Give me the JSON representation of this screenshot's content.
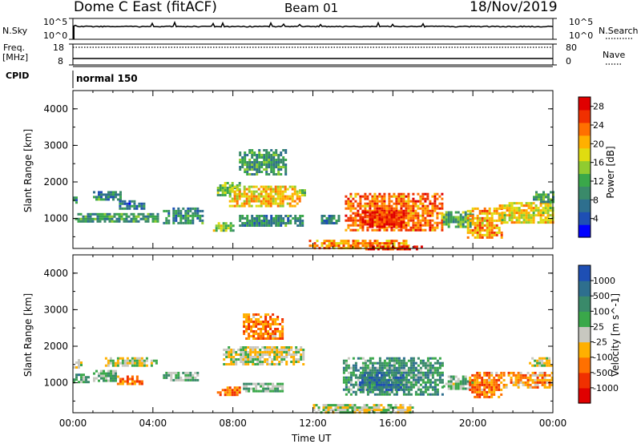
{
  "header": {
    "title": "Dome C East (fitACF)",
    "beam": "Beam 01",
    "date": "18/Nov/2019"
  },
  "strip": {
    "nsky_label": "N.Sky",
    "nsearch_label": "N.Search",
    "nsky_ticks": [
      "10^5",
      "10^0"
    ],
    "nsearch_ticks": [
      "10^5",
      "10^0"
    ],
    "freq_label_1": "Freq.",
    "freq_label_2": "[MHz]",
    "freq_ticks": [
      "18",
      "8"
    ],
    "nave_label": "Nave",
    "nave_ticks": [
      "80",
      "0"
    ],
    "cpid_label": "CPID",
    "cpid_value": "normal 150"
  },
  "chart_data": [
    {
      "type": "heatmap",
      "name": "power",
      "ylabel": "Slant Range [km]",
      "xlabel": "Time UT",
      "x_range_hours": [
        0,
        24
      ],
      "ylim": [
        180,
        4500
      ],
      "yticks": [
        "4000",
        "3000",
        "2000",
        "1000"
      ],
      "xticks": [
        "00:00",
        "04:00",
        "08:00",
        "12:00",
        "16:00",
        "20:00",
        "00:00"
      ],
      "colorbar": {
        "label": "Power [dB]",
        "ticks": [
          "28",
          "24",
          "20",
          "16",
          "12",
          "8",
          "4"
        ],
        "range": [
          0,
          30
        ],
        "colors": [
          "#0000ff",
          "#1e4fb4",
          "#2e6f8e",
          "#3a8a6a",
          "#3aa84a",
          "#90cc30",
          "#e0dc10",
          "#ffb000",
          "#ff7000",
          "#f03000",
          "#e00000"
        ]
      },
      "echo_regions": [
        {
          "t0": 0.0,
          "t1": 0.2,
          "r0": 1400,
          "r1": 1600,
          "level": 0.3
        },
        {
          "t0": 0.1,
          "t1": 4.3,
          "r0": 900,
          "r1": 1150,
          "level": 0.35
        },
        {
          "t0": 1.0,
          "t1": 2.4,
          "r0": 1500,
          "r1": 1750,
          "level": 0.3
        },
        {
          "t0": 2.3,
          "t1": 3.6,
          "r0": 1250,
          "r1": 1500,
          "level": 0.25
        },
        {
          "t0": 4.5,
          "t1": 6.5,
          "r0": 900,
          "r1": 1300,
          "level": 0.3
        },
        {
          "t0": 7.2,
          "t1": 8.3,
          "r0": 1650,
          "r1": 2000,
          "level": 0.45
        },
        {
          "t0": 7.8,
          "t1": 11.3,
          "r0": 1350,
          "r1": 1900,
          "level": 0.65
        },
        {
          "t0": 7.0,
          "t1": 8.0,
          "r0": 700,
          "r1": 900,
          "level": 0.5
        },
        {
          "t0": 8.3,
          "t1": 11.5,
          "r0": 800,
          "r1": 1100,
          "level": 0.3
        },
        {
          "t0": 8.3,
          "t1": 10.6,
          "r0": 2200,
          "r1": 2900,
          "level": 0.35
        },
        {
          "t0": 11.3,
          "t1": 11.6,
          "r0": 1650,
          "r1": 1800,
          "level": 0.4
        },
        {
          "t0": 12.4,
          "t1": 13.3,
          "r0": 850,
          "r1": 1100,
          "level": 0.3
        },
        {
          "t0": 13.6,
          "t1": 18.5,
          "r0": 650,
          "r1": 1700,
          "level": 0.78
        },
        {
          "t0": 14.2,
          "t1": 16.6,
          "r0": 750,
          "r1": 1200,
          "level": 0.9
        },
        {
          "t0": 18.5,
          "t1": 20.0,
          "r0": 800,
          "r1": 1200,
          "level": 0.4
        },
        {
          "t0": 19.7,
          "t1": 21.5,
          "r0": 500,
          "r1": 1300,
          "level": 0.7
        },
        {
          "t0": 21.3,
          "t1": 24.0,
          "r0": 900,
          "r1": 1450,
          "level": 0.6
        },
        {
          "t0": 23.0,
          "t1": 24.0,
          "r0": 1450,
          "r1": 1750,
          "level": 0.35
        },
        {
          "t0": 11.8,
          "t1": 16.8,
          "r0": 180,
          "r1": 420,
          "level": 0.72
        },
        {
          "t0": 14.5,
          "t1": 17.5,
          "r0": 180,
          "r1": 260,
          "level": 0.95
        }
      ]
    },
    {
      "type": "heatmap",
      "name": "velocity",
      "ylabel": "Slant Range [km]",
      "xlabel": "Time UT",
      "x_range_hours": [
        0,
        24
      ],
      "ylim": [
        180,
        4500
      ],
      "yticks": [
        "4000",
        "3000",
        "2000",
        "1000"
      ],
      "xticks": [
        "00:00",
        "04:00",
        "08:00",
        "12:00",
        "16:00",
        "20:00",
        "00:00"
      ],
      "colorbar": {
        "label": "Velocity [m s^-1]",
        "ticks": [
          "1000",
          "500",
          "100",
          "25",
          "-25",
          "-100",
          "-500",
          "-1000"
        ],
        "colors": [
          "#e00000",
          "#f03000",
          "#ff7000",
          "#ffb000",
          "#c8c8c0",
          "#3aa84a",
          "#3a8a6a",
          "#2e6f8e",
          "#1e4fb4"
        ]
      },
      "echo_regions": [
        {
          "t0": 0.0,
          "t1": 0.4,
          "r0": 1400,
          "r1": 1650,
          "level": 0.5
        },
        {
          "t0": 0.0,
          "t1": 0.8,
          "r0": 1050,
          "r1": 1250,
          "level": 0.65
        },
        {
          "t0": 1.0,
          "t1": 2.2,
          "r0": 1050,
          "r1": 1350,
          "level": 0.6
        },
        {
          "t0": 1.6,
          "t1": 4.3,
          "r0": 1450,
          "r1": 1700,
          "level": 0.5
        },
        {
          "t0": 2.2,
          "t1": 3.5,
          "r0": 950,
          "r1": 1200,
          "level": 0.3
        },
        {
          "t0": 4.5,
          "t1": 6.2,
          "r0": 1100,
          "r1": 1300,
          "level": 0.6
        },
        {
          "t0": 7.5,
          "t1": 11.5,
          "r0": 1500,
          "r1": 2000,
          "level": 0.5
        },
        {
          "t0": 7.2,
          "t1": 8.3,
          "r0": 650,
          "r1": 900,
          "level": 0.25
        },
        {
          "t0": 8.5,
          "t1": 10.5,
          "r0": 750,
          "r1": 1000,
          "level": 0.62
        },
        {
          "t0": 8.5,
          "t1": 10.5,
          "r0": 2200,
          "r1": 2900,
          "level": 0.3
        },
        {
          "t0": 13.5,
          "t1": 18.5,
          "r0": 650,
          "r1": 1700,
          "level": 0.68
        },
        {
          "t0": 14.3,
          "t1": 16.5,
          "r0": 800,
          "r1": 1300,
          "level": 0.85
        },
        {
          "t0": 18.5,
          "t1": 20.0,
          "r0": 850,
          "r1": 1200,
          "level": 0.6
        },
        {
          "t0": 19.8,
          "t1": 21.4,
          "r0": 600,
          "r1": 1300,
          "level": 0.3
        },
        {
          "t0": 21.5,
          "t1": 24.0,
          "r0": 900,
          "r1": 1300,
          "level": 0.35
        },
        {
          "t0": 22.8,
          "t1": 24.0,
          "r0": 1450,
          "r1": 1700,
          "level": 0.5
        },
        {
          "t0": 12.0,
          "t1": 17.0,
          "r0": 180,
          "r1": 420,
          "level": 0.5
        }
      ]
    }
  ]
}
